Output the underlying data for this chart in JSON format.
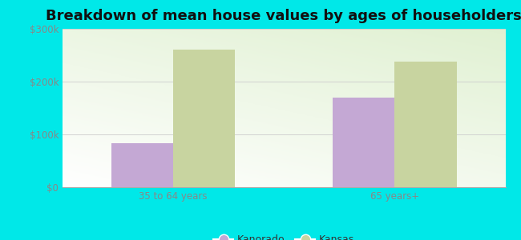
{
  "title": "Breakdown of mean house values by ages of householders",
  "categories": [
    "35 to 64 years",
    "65 years+"
  ],
  "kanorado_values": [
    83000,
    170000
  ],
  "kansas_values": [
    260000,
    238000
  ],
  "kanorado_color": "#c4a8d4",
  "kansas_color": "#c8d4a0",
  "background_color": "#00e8e8",
  "ylim": [
    0,
    300000
  ],
  "yticks": [
    0,
    100000,
    200000,
    300000
  ],
  "ytick_labels": [
    "$0",
    "$100k",
    "$200k",
    "$300k"
  ],
  "legend_kanorado": "Kanorado",
  "legend_kansas": "Kansas",
  "title_fontsize": 13,
  "bar_width": 0.28,
  "tick_color": "#888888",
  "grid_color": "#cccccc"
}
